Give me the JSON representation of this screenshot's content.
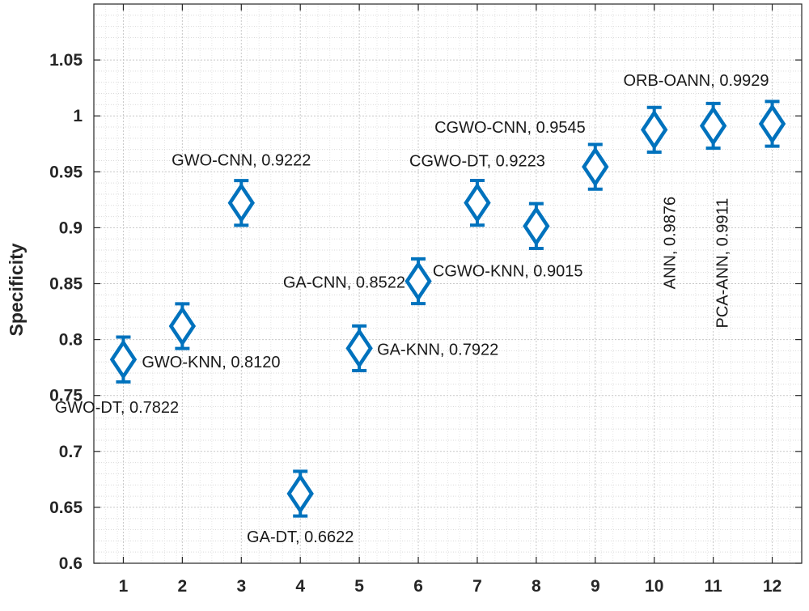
{
  "chart_data": {
    "type": "scatter",
    "title": "",
    "xlabel": "",
    "ylabel": "Specificity",
    "xlim": [
      0.5,
      12.5
    ],
    "ylim": [
      0.6,
      1.1
    ],
    "x_ticks": [
      "1",
      "2",
      "3",
      "4",
      "5",
      "6",
      "7",
      "8",
      "9",
      "10",
      "11",
      "12"
    ],
    "y_ticks": [
      "0.6",
      "0.65",
      "0.7",
      "0.75",
      "0.8",
      "0.85",
      "0.9",
      "0.95",
      "1",
      "1.05"
    ],
    "grid": true,
    "minor_grid": true,
    "marker": "diamond",
    "series_color": "#0072BD",
    "points": [
      {
        "x": 1,
        "y": 0.7822,
        "err": 0.02,
        "label": "GWO-DT, 0.7822"
      },
      {
        "x": 2,
        "y": 0.812,
        "err": 0.02,
        "label": "GWO-KNN, 0.8120"
      },
      {
        "x": 3,
        "y": 0.9222,
        "err": 0.02,
        "label": "GWO-CNN, 0.9222"
      },
      {
        "x": 4,
        "y": 0.6622,
        "err": 0.02,
        "label": "GA-DT, 0.6622"
      },
      {
        "x": 5,
        "y": 0.7922,
        "err": 0.02,
        "label": "GA-KNN, 0.7922"
      },
      {
        "x": 6,
        "y": 0.8522,
        "err": 0.02,
        "label": "GA-CNN, 0.8522"
      },
      {
        "x": 7,
        "y": 0.9223,
        "err": 0.02,
        "label": "CGWO-DT, 0.9223"
      },
      {
        "x": 8,
        "y": 0.9015,
        "err": 0.02,
        "label": "CGWO-KNN, 0.9015"
      },
      {
        "x": 9,
        "y": 0.9545,
        "err": 0.02,
        "label": "CGWO-CNN, 0.9545"
      },
      {
        "x": 10,
        "y": 0.9876,
        "err": 0.02,
        "label": "ANN, 0.9876"
      },
      {
        "x": 11,
        "y": 0.9911,
        "err": 0.02,
        "label": "PCA-ANN, 0.9911"
      },
      {
        "x": 12,
        "y": 0.9929,
        "err": 0.02,
        "label": "ORB-OANN, 0.9929"
      }
    ]
  }
}
